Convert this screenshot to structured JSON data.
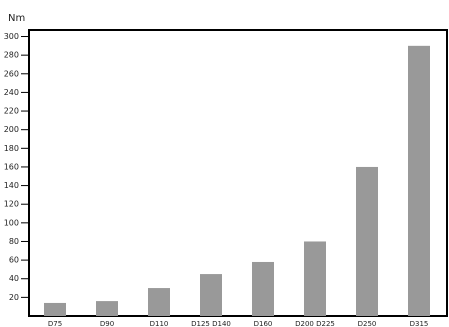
{
  "chart_data": {
    "type": "bar",
    "y_label": "Nm",
    "categories": [
      "D75",
      "D90",
      "D110",
      "D125 D140",
      "D160",
      "D200 D225",
      "D250",
      "D315"
    ],
    "values": [
      14,
      16,
      30,
      45,
      58,
      80,
      160,
      290
    ],
    "color": "#999999",
    "ylim": [
      0,
      307
    ],
    "yticks": [
      20,
      40,
      60,
      80,
      100,
      120,
      140,
      160,
      180,
      200,
      220,
      240,
      260,
      280,
      300
    ]
  }
}
